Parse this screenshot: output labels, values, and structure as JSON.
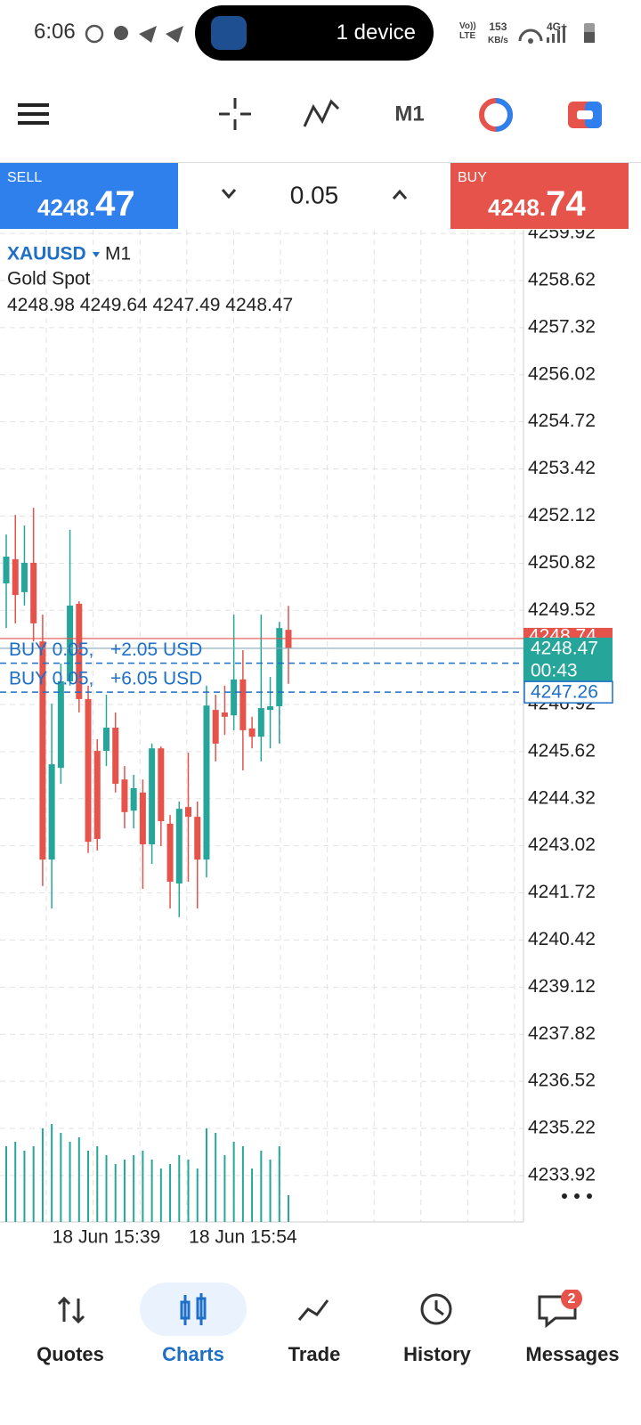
{
  "status_bar": {
    "time": "6:06",
    "cast": "1 device",
    "volte": "Vo)) LTE",
    "speed": "153",
    "speed_unit": "KB/s",
    "net": "4G+"
  },
  "toolbar": {
    "timeframe": "M1"
  },
  "trade_panel": {
    "sell_label": "SELL",
    "sell_main": "4248.",
    "sell_big": "47",
    "volume": "0.05",
    "buy_label": "BUY",
    "buy_main": "4248.",
    "buy_big": "74"
  },
  "chart_data": {
    "type": "candlestick",
    "symbol": "XAUUSD",
    "timeframe": "M1",
    "description": "Gold Spot",
    "categories": [
      null,
      null,
      null,
      null,
      null,
      null,
      null,
      null,
      null,
      null,
      null,
      "18 Jun 15:39",
      null,
      null,
      null,
      null,
      null,
      null,
      null,
      null,
      null,
      null,
      null,
      null,
      null,
      null,
      "18 Jun 15:54",
      null,
      null,
      null,
      null,
      null
    ],
    "open": [
      4250.26,
      4250.93,
      4250.02,
      4250.83,
      4248.66,
      4242.64,
      4245.17,
      4247.56,
      4249.7,
      4247.07,
      4245.64,
      4245.64,
      4246.28,
      4244.85,
      4243.99,
      4244.49,
      4243.06,
      4245.71,
      4243.63,
      4241.98,
      4244.09,
      4243.82,
      4242.64,
      4246.77,
      4246.7,
      4246.62,
      4247.61,
      4246.26,
      4246.03,
      4246.77,
      4246.87,
      4248.98
    ],
    "high": [
      4251.61,
      4252.15,
      4251.86,
      4252.35,
      4249.4,
      4246.94,
      4248.05,
      4251.74,
      4249.77,
      4247.44,
      4245.96,
      4247.19,
      4246.7,
      4245.22,
      4244.98,
      4244.85,
      4245.84,
      4245.76,
      4243.87,
      4244.24,
      4245.59,
      4244.24,
      4247.44,
      4247.19,
      4247.44,
      4249.4,
      4248.42,
      4246.58,
      4249.4,
      4247.68,
      4249.2,
      4249.64
    ],
    "low": [
      4249.03,
      4249.16,
      4249.65,
      4248.66,
      4241.91,
      4241.29,
      4244.73,
      4247.44,
      4246.7,
      4242.82,
      4242.89,
      4245.22,
      4244.49,
      4243.5,
      4243.5,
      4241.83,
      4242.52,
      4243.01,
      4241.29,
      4241.05,
      4242.03,
      4241.29,
      4242.15,
      4245.35,
      4246.08,
      4246.21,
      4245.1,
      4245.71,
      4245.35,
      4245.71,
      4245.84,
      4247.49
    ],
    "close": [
      4251.0,
      4249.94,
      4250.83,
      4249.16,
      4242.64,
      4245.27,
      4247.56,
      4249.65,
      4247.07,
      4243.13,
      4243.21,
      4246.28,
      4244.73,
      4243.95,
      4244.61,
      4243.06,
      4245.71,
      4243.7,
      4242.03,
      4244.04,
      4243.82,
      4242.64,
      4246.89,
      4245.84,
      4246.58,
      4247.61,
      4246.21,
      4246.03,
      4246.82,
      4246.87,
      4249.03,
      4248.47
    ],
    "volume": [
      85,
      90,
      80,
      85,
      105,
      110,
      100,
      90,
      95,
      80,
      85,
      75,
      65,
      70,
      75,
      80,
      70,
      60,
      65,
      75,
      70,
      60,
      105,
      100,
      75,
      90,
      85,
      60,
      80,
      70,
      85,
      30
    ],
    "up_color": "#26a69a",
    "down_color": "#e5534b",
    "volume_color": "#26a69a",
    "ylim": [
      4232.64,
      4260.02
    ],
    "yticks": [
      4259.92,
      4258.62,
      4257.32,
      4256.02,
      4254.72,
      4253.42,
      4252.12,
      4250.82,
      4249.52,
      4246.92,
      4245.62,
      4244.32,
      4243.02,
      4241.72,
      4240.42,
      4239.12,
      4237.82,
      4236.52,
      4235.22,
      4233.92
    ],
    "grid": true,
    "ask": 4248.74,
    "countdown": "00:43",
    "positions": [
      {
        "label": "BUY 0.05,",
        "profit": "+2.05 USD",
        "price": 4248.06
      },
      {
        "label": "BUY 0.05,",
        "profit": "+6.05 USD",
        "price": 4247.26
      }
    ]
  },
  "nav": {
    "items": [
      "Quotes",
      "Charts",
      "Trade",
      "History",
      "Messages"
    ],
    "badge": "2"
  }
}
